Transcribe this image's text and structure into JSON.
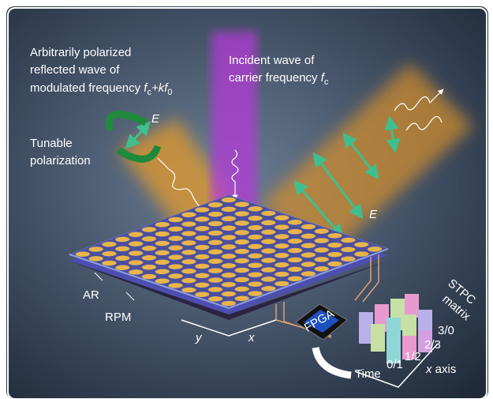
{
  "reflected": {
    "lines": [
      "Arbitrarily polarized",
      "reflected wave of",
      "modulated frequency"
    ],
    "formula": [
      "f",
      "c",
      "+k",
      "f",
      "0"
    ]
  },
  "incident": {
    "lines": [
      "Incident wave of",
      "carrier frequency"
    ],
    "formula": [
      "f",
      "c"
    ]
  },
  "tunable": [
    "Tunable",
    "polarization"
  ],
  "e_labels": [
    "E",
    "E"
  ],
  "layers": [
    "AR",
    "RPM"
  ],
  "axes": [
    "y",
    "x"
  ],
  "chip": "FPGA",
  "matrix": {
    "title": [
      "STPC",
      "matrix"
    ],
    "entries": [
      "3/0",
      "2/3",
      "1/2",
      "0/1"
    ],
    "time": "Time",
    "x_axis": [
      "x",
      "axis"
    ]
  }
}
